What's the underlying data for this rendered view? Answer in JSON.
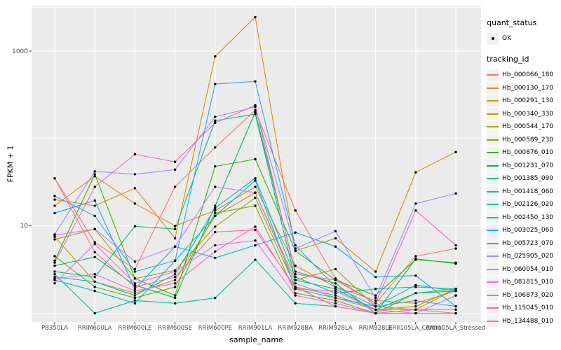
{
  "legend": {
    "quant_status_title": "quant_status",
    "quant_status_value": "OK",
    "tracking_id_title": "tracking_id"
  },
  "chart_data": {
    "type": "line",
    "title": "",
    "xlabel": "sample_name",
    "ylabel": "FPKM + 1",
    "yscale": "log10",
    "yticks": [
      10,
      1000
    ],
    "ylim": [
      0.8,
      3400
    ],
    "grid": true,
    "legend_position": "right",
    "panel_color": "#EBEBEB",
    "grid_color": "#FFFFFF",
    "tick_text_color": "#4D4D4D",
    "point_color": "#000000",
    "quant_status": "OK",
    "categories": [
      "PB350LA",
      "RRIM600LA",
      "RRIM600LE",
      "RRIM600SE",
      "RRIM600PE",
      "RRIM901LA",
      "RRIM928BA",
      "RRIM928LA",
      "RRIM928LE",
      "RRII105LA_Control",
      "RRII105LA_Stressed"
    ],
    "series": [
      {
        "name": "Hb_000066_180",
        "color": "#F8766D",
        "values": [
          35,
          6.5,
          3.2,
          28,
          79,
          210,
          15,
          2.5,
          1.3,
          4.5,
          5.5
        ]
      },
      {
        "name": "Hb_000130_170",
        "color": "#EA8331",
        "values": [
          17,
          37,
          18,
          10,
          15,
          28,
          3.5,
          2.0,
          1.4,
          1.3,
          1.8
        ]
      },
      {
        "name": "Hb_000291_130",
        "color": "#D89000",
        "values": [
          20,
          17,
          27,
          7.2,
          870,
          2450,
          5.2,
          7.2,
          3.0,
          41,
          70
        ]
      },
      {
        "name": "Hb_000340_330",
        "color": "#C09B00",
        "values": [
          7.5,
          2.3,
          1.7,
          2.4,
          13,
          24,
          2.4,
          3.2,
          1.2,
          1.1,
          1.9
        ]
      },
      {
        "name": "Hb_000544_170",
        "color": "#A3A500",
        "values": [
          7.0,
          9.2,
          2.5,
          3.1,
          9.8,
          21,
          2.0,
          1.6,
          1.1,
          1.2,
          1.9
        ]
      },
      {
        "name": "Hb_000589_230",
        "color": "#7CAE00",
        "values": [
          4.5,
          2.0,
          1.5,
          2.0,
          14,
          17,
          1.7,
          1.4,
          1.0,
          1.7,
          1.9
        ]
      },
      {
        "name": "Hb_000876_010",
        "color": "#39B600",
        "values": [
          4.0,
          39,
          2.5,
          1.6,
          48,
          58,
          5.2,
          2.4,
          1.6,
          4.1,
          3.8
        ]
      },
      {
        "name": "Hb_001231_070",
        "color": "#00BB4E",
        "values": [
          3.5,
          4.4,
          2.1,
          1.5,
          17,
          200,
          3.0,
          2.2,
          1.0,
          4.2,
          3.7
        ]
      },
      {
        "name": "Hb_001385_090",
        "color": "#00BF7D",
        "values": [
          3.0,
          2.6,
          9.9,
          9.2,
          160,
          190,
          2.4,
          1.9,
          1.1,
          1.7,
          1.8
        ]
      },
      {
        "name": "Hb_001418_060",
        "color": "#00C1A3",
        "values": [
          2.8,
          1.0,
          1.4,
          1.3,
          1.5,
          4.1,
          1.3,
          1.2,
          1.0,
          1.0,
          1.6
        ]
      },
      {
        "name": "Hb_002126_020",
        "color": "#00BFC4",
        "values": [
          2.6,
          2.3,
          1.6,
          2.8,
          16,
          35,
          2.6,
          1.7,
          1.9,
          2.0,
          1.9
        ]
      },
      {
        "name": "Hb_002450_130",
        "color": "#00BADE",
        "values": [
          2.4,
          1.8,
          1.3,
          4.0,
          13,
          33,
          1.9,
          1.5,
          1.2,
          2.1,
          1.8
        ]
      },
      {
        "name": "Hb_003025_060",
        "color": "#00B0F6",
        "values": [
          14,
          19.5,
          1.9,
          5.8,
          4.3,
          6.0,
          8.4,
          5.8,
          2.6,
          2.7,
          1.2
        ]
      },
      {
        "name": "Hb_005723_070",
        "color": "#35A2FF",
        "values": [
          22,
          13,
          3.0,
          4.0,
          420,
          450,
          6.0,
          2.0,
          1.2,
          1.4,
          1.2
        ]
      },
      {
        "name": "Hb_025905_020",
        "color": "#9590FF",
        "values": [
          8.0,
          42,
          39,
          44,
          177,
          230,
          5.5,
          8.7,
          1.5,
          18,
          23.5
        ]
      },
      {
        "name": "Hb_060054_010",
        "color": "#C77CFF",
        "values": [
          7.8,
          9.2,
          3.9,
          5.8,
          28,
          24,
          2.2,
          1.5,
          1.1,
          1.0,
          1.6
        ]
      },
      {
        "name": "Hb_081815_010",
        "color": "#E76BF3",
        "values": [
          2.2,
          6.2,
          2.2,
          3.0,
          6.0,
          6.8,
          1.6,
          1.3,
          1.0,
          1.0,
          1.0
        ]
      },
      {
        "name": "Hb_106873_020",
        "color": "#FA62DB",
        "values": [
          2.5,
          2.8,
          1.8,
          2.2,
          5.1,
          9.8,
          1.9,
          1.8,
          1.1,
          1.1,
          1.1
        ]
      },
      {
        "name": "Hb_115045_010",
        "color": "#FF62BC",
        "values": [
          3.8,
          28,
          66,
          54,
          151,
          240,
          2.8,
          2.4,
          1.3,
          15,
          6.0
        ]
      },
      {
        "name": "Hb_134488_010",
        "color": "#FF6A98",
        "values": [
          35,
          5.0,
          2.0,
          2.6,
          8.5,
          9.0,
          2.0,
          1.2,
          1.0,
          1.1,
          1.0
        ]
      }
    ]
  }
}
